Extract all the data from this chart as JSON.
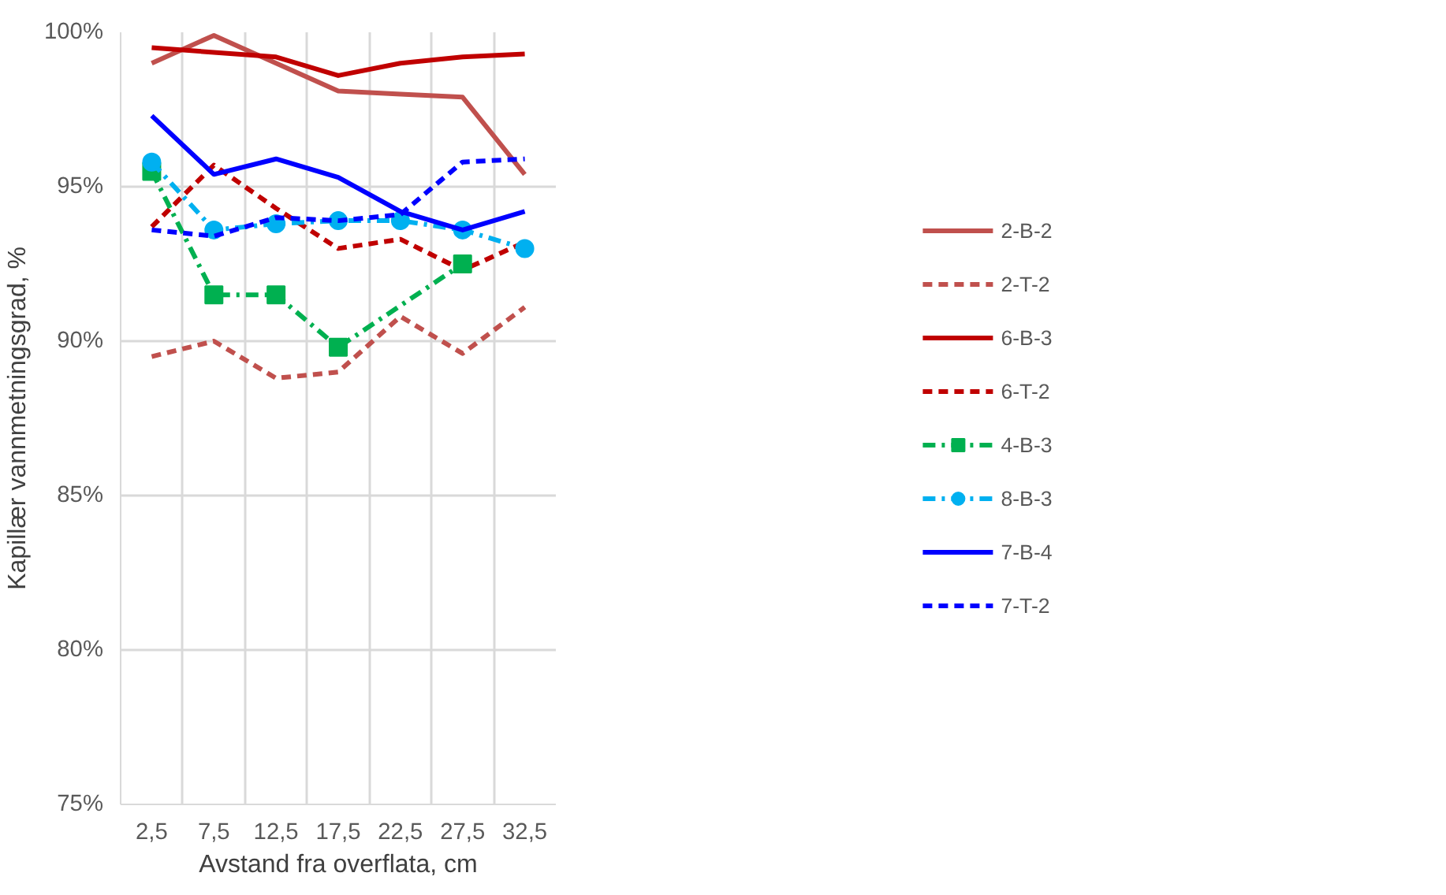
{
  "chart_data": {
    "type": "line",
    "xlabel": "Avstand fra overflata, cm",
    "ylabel": "Kapillær vannmetningsgrad, %",
    "categories": [
      "2,5",
      "7,5",
      "12,5",
      "17,5",
      "22,5",
      "27,5",
      "32,5"
    ],
    "ylim": [
      75,
      100
    ],
    "yticks": [
      {
        "value": 75,
        "label": "75%"
      },
      {
        "value": 80,
        "label": "80%"
      },
      {
        "value": 85,
        "label": "85%"
      },
      {
        "value": 90,
        "label": "90%"
      },
      {
        "value": 95,
        "label": "95%"
      },
      {
        "value": 100,
        "label": "100%"
      }
    ],
    "grid": true,
    "legend": "right",
    "series": [
      {
        "name": "2-B-2",
        "color": "#c0504d",
        "line_style": "solid",
        "marker": "none",
        "values": [
          99.0,
          99.9,
          99.0,
          98.1,
          98.0,
          97.9,
          95.4
        ]
      },
      {
        "name": "2-T-2",
        "color": "#c0504d",
        "line_style": "dashed",
        "marker": "none",
        "values": [
          89.5,
          90.0,
          88.8,
          89.0,
          90.8,
          89.6,
          91.1
        ]
      },
      {
        "name": "6-B-3",
        "color": "#c00000",
        "line_style": "solid",
        "marker": "none",
        "values": [
          99.5,
          null,
          99.2,
          98.6,
          99.0,
          99.2,
          99.3
        ]
      },
      {
        "name": "6-T-2",
        "color": "#c00000",
        "line_style": "dashed",
        "marker": "none",
        "values": [
          93.7,
          95.7,
          94.3,
          93.0,
          93.3,
          92.3,
          93.2
        ]
      },
      {
        "name": "4-B-3",
        "color": "#00b050",
        "line_style": "dashdot",
        "marker": "square",
        "values": [
          95.5,
          91.5,
          91.5,
          89.8,
          null,
          92.5,
          null
        ]
      },
      {
        "name": "8-B-3",
        "color": "#00b0f0",
        "line_style": "dashdot",
        "marker": "circle",
        "values": [
          95.8,
          93.6,
          93.8,
          93.9,
          93.9,
          93.6,
          93.0
        ]
      },
      {
        "name": "7-B-4",
        "color": "#0000ff",
        "line_style": "solid",
        "marker": "none",
        "values": [
          97.3,
          95.4,
          95.9,
          95.3,
          94.2,
          93.6,
          94.2
        ]
      },
      {
        "name": "7-T-2",
        "color": "#0000ff",
        "line_style": "dashed",
        "marker": "none",
        "values": [
          93.6,
          93.4,
          94.0,
          93.9,
          94.1,
          95.8,
          95.9
        ]
      }
    ]
  }
}
